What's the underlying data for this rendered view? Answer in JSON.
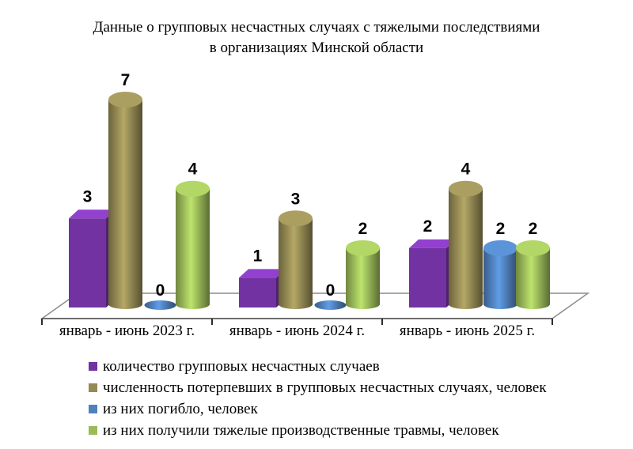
{
  "chart_data": {
    "type": "bar",
    "style": "3d-cylinder",
    "title": "Данные о групповых несчастных случаях с тяжелыми последствиями в организациях Минской области",
    "title_lines": [
      "Данные о групповых несчастных случаях с тяжелыми последствиями",
      "в организациях Минской области"
    ],
    "categories": [
      "январь - июнь 2023 г.",
      "январь - июнь 2024 г.",
      "январь - июнь 2025 г."
    ],
    "series": [
      {
        "name": "количество групповых несчастных случаев",
        "color": "#7232A2",
        "shape": "box",
        "values": [
          3,
          1,
          2
        ]
      },
      {
        "name": "численность потерпевших в групповых несчастных случаях, человек",
        "color": "#948A54",
        "shape": "cylinder",
        "values": [
          7,
          3,
          4
        ]
      },
      {
        "name": "из них погибло, человек",
        "color": "#4F81BD",
        "shape": "cylinder",
        "values": [
          0,
          0,
          2
        ]
      },
      {
        "name": "из них получили тяжелые производственные травмы, человек",
        "color": "#9BBB59",
        "shape": "cylinder",
        "values": [
          4,
          2,
          2
        ]
      }
    ],
    "value_labels_shown": true,
    "legend_position": "bottom-left",
    "ylim": [
      0,
      7
    ],
    "grid": false,
    "axis_line_color": "#8c8c8c",
    "text_color": "#000000",
    "background_color": "#ffffff"
  }
}
